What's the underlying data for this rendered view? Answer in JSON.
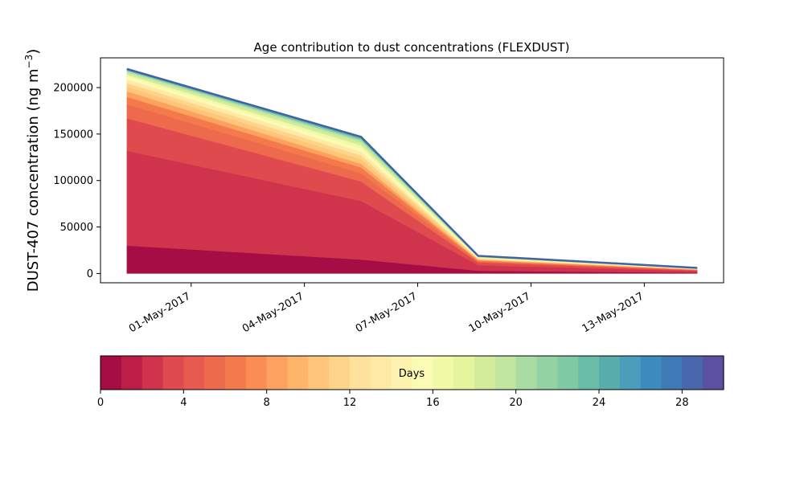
{
  "chart_data": {
    "type": "area",
    "stacked": true,
    "title": "Age contribution to dust concentrations (FLEXDUST)",
    "ylabel": "DUST-407 concentration (ng m",
    "ylabel_unit_exponent": "−3",
    "ylabel_close": ")",
    "x_tick_labels": [
      "01-May-2017",
      "04-May-2017",
      "07-May-2017",
      "10-May-2017",
      "13-May-2017"
    ],
    "x_tick_days": [
      1,
      4,
      7,
      10,
      13
    ],
    "x_days": [
      -0.7,
      5.5,
      8.6,
      14.4
    ],
    "xlim_days": [
      -1.4,
      15.1
    ],
    "y_tick_labels": [
      "0",
      "50000",
      "100000",
      "150000",
      "200000"
    ],
    "y_tick_values": [
      0,
      50000,
      100000,
      150000,
      200000
    ],
    "ylim": [
      -10000,
      232000
    ],
    "grid": false,
    "totals": [
      220000,
      147000,
      19000,
      6000
    ],
    "cumulative_boundaries": [
      [
        30000,
        15000,
        3000,
        800
      ],
      [
        132000,
        78000,
        9000,
        2500
      ],
      [
        167000,
        99000,
        12000,
        3300
      ],
      [
        182000,
        108000,
        13000,
        3700
      ],
      [
        190000,
        114000,
        14000,
        4000
      ],
      [
        196000,
        118000,
        14800,
        4200
      ],
      [
        201000,
        123000,
        15400,
        4500
      ],
      [
        205000,
        127000,
        16000,
        4700
      ],
      [
        209000,
        131000,
        16500,
        4900
      ],
      [
        212000,
        135000,
        16900,
        5100
      ],
      [
        214000,
        138000,
        17300,
        5300
      ],
      [
        216000,
        141000,
        17700,
        5500
      ],
      [
        217500,
        143000,
        18100,
        5650
      ],
      [
        218500,
        144500,
        18400,
        5750
      ],
      [
        219200,
        145500,
        18600,
        5850
      ],
      [
        219600,
        146200,
        18800,
        5920
      ],
      [
        219800,
        146600,
        18900,
        5960
      ],
      [
        219900,
        146800,
        18950,
        5980
      ]
    ],
    "colorbar": {
      "label": "Days",
      "tick_labels": [
        "0",
        "4",
        "8",
        "12",
        "16",
        "20",
        "24",
        "28"
      ],
      "tick_values": [
        0,
        4,
        8,
        12,
        16,
        20,
        24,
        28
      ],
      "range": [
        0,
        30
      ],
      "colors": [
        "#a50d44",
        "#bc1e48",
        "#d0344d",
        "#df4a4e",
        "#e75a4f",
        "#ee6a4d",
        "#f57a4b",
        "#fa8d55",
        "#fca15f",
        "#fdb56a",
        "#fec67a",
        "#fed48a",
        "#fee19a",
        "#fee9a5",
        "#fef3ae",
        "#fafbb5",
        "#f2f9a6",
        "#e5f59e",
        "#d3ec9c",
        "#c0e59e",
        "#a9dca3",
        "#93d3a3",
        "#7fcaa5",
        "#6abda8",
        "#58adab",
        "#4b9ebb",
        "#3d8bbe",
        "#3f79b6",
        "#4a67ae",
        "#5b51a2"
      ]
    }
  }
}
